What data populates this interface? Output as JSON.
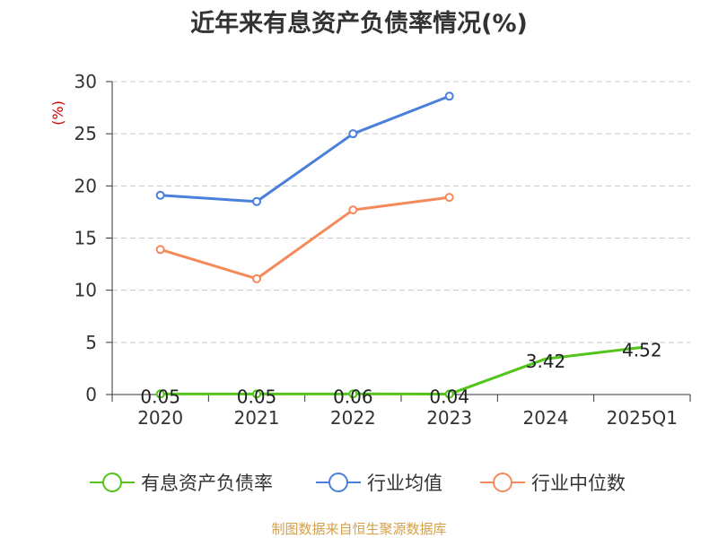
{
  "title": "近年来有息资产负债率情况(%)",
  "source": "制图数据来自恒生聚源数据库",
  "chart_data": {
    "type": "line",
    "title": "近年来有息资产负债率情况(%)",
    "ylabel": "(%)",
    "categories": [
      "2020",
      "2021",
      "2022",
      "2023",
      "2024",
      "2025Q1"
    ],
    "y_ticks": [
      "0",
      "5",
      "10",
      "15",
      "20",
      "25",
      "30"
    ],
    "ylim": [
      0,
      30
    ],
    "grid": true,
    "legend_position": "bottom",
    "series": [
      {
        "name": "有息资产负债率",
        "color": "#52c41a",
        "values": [
          0.05,
          0.05,
          0.06,
          0.04,
          3.42,
          4.52
        ],
        "labels": [
          "0.05",
          "0.05",
          "0.06",
          "0.04",
          "3.42",
          "4.52"
        ]
      },
      {
        "name": "行业均值",
        "color": "#4a7fdc",
        "values": [
          19.1,
          18.5,
          25.0,
          28.6,
          null,
          null
        ]
      },
      {
        "name": "行业中位数",
        "color": "#f4895a",
        "values": [
          13.9,
          11.1,
          17.7,
          18.9,
          null,
          null
        ]
      }
    ]
  }
}
